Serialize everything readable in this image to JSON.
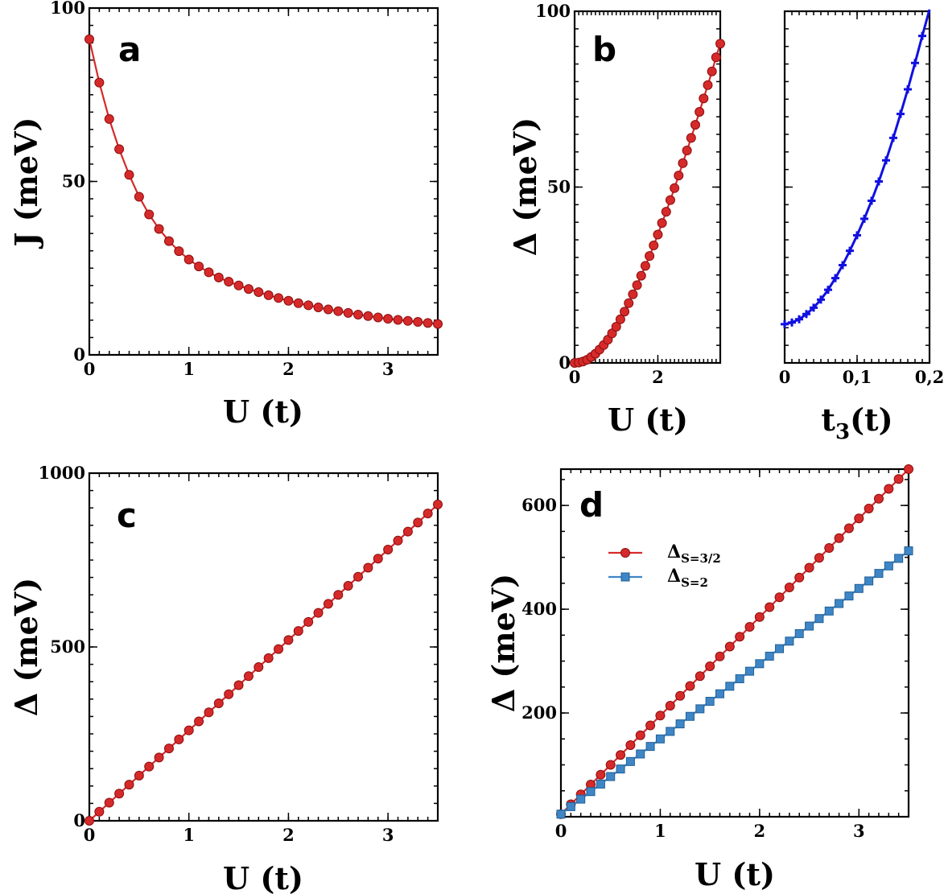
{
  "figure": {
    "colors": {
      "red": "#d62a2a",
      "red_edge": "#8b0d0d",
      "blue": "#1010e0",
      "steel": "#3f86c6",
      "steel_edge": "#1f5f96"
    }
  },
  "chart_data": [
    {
      "id": "a",
      "panel_label": "a",
      "type": "line",
      "xlabel": "U (t)",
      "ylabel": "J (meV)",
      "xlim": [
        0,
        3.5
      ],
      "ylim": [
        0,
        100
      ],
      "xticks": [
        0,
        1,
        2,
        3
      ],
      "xtick_labels": [
        "0",
        "1",
        "2",
        "3"
      ],
      "yticks": [
        0,
        50,
        100
      ],
      "ytick_labels": [
        "0",
        "50",
        "100"
      ],
      "series": [
        {
          "name": "J",
          "color": "#d62a2a",
          "marker": "circle",
          "x": [
            0,
            0.1,
            0.2,
            0.3,
            0.4,
            0.5,
            0.6,
            0.7,
            0.8,
            0.9,
            1.0,
            1.1,
            1.2,
            1.3,
            1.4,
            1.5,
            1.6,
            1.7,
            1.8,
            1.9,
            2.0,
            2.1,
            2.2,
            2.3,
            2.4,
            2.5,
            2.6,
            2.7,
            2.8,
            2.9,
            3.0,
            3.1,
            3.2,
            3.3,
            3.4,
            3.5
          ],
          "y": [
            91.0,
            78.5,
            68.0,
            59.3,
            51.9,
            45.6,
            40.5,
            36.3,
            32.8,
            29.9,
            27.5,
            25.5,
            23.8,
            22.3,
            21.1,
            20.0,
            19.0,
            18.1,
            17.2,
            16.4,
            15.6,
            14.9,
            14.3,
            13.7,
            13.1,
            12.6,
            12.1,
            11.6,
            11.2,
            10.8,
            10.4,
            10.1,
            9.8,
            9.5,
            9.2,
            8.9
          ]
        }
      ]
    },
    {
      "id": "b1",
      "panel_label": "b",
      "type": "line",
      "xlabel": "U (t)",
      "ylabel": "Δ (meV)",
      "xlim": [
        0,
        3.5
      ],
      "ylim": [
        0,
        100
      ],
      "xticks": [
        0,
        2
      ],
      "xtick_labels": [
        "0",
        "2"
      ],
      "yticks": [
        0,
        50,
        100
      ],
      "ytick_labels": [
        "0",
        "50",
        "100"
      ],
      "series": [
        {
          "name": "Δ(U)",
          "color": "#d62a2a",
          "marker": "circle",
          "x": [
            0,
            0.1,
            0.2,
            0.3,
            0.4,
            0.5,
            0.6,
            0.7,
            0.8,
            0.9,
            1.0,
            1.1,
            1.2,
            1.3,
            1.4,
            1.5,
            1.6,
            1.7,
            1.8,
            1.9,
            2.0,
            2.1,
            2.2,
            2.3,
            2.4,
            2.5,
            2.6,
            2.7,
            2.8,
            2.9,
            3.0,
            3.1,
            3.2,
            3.3,
            3.4,
            3.5
          ],
          "y": [
            0.0,
            0.1,
            0.4,
            0.9,
            1.7,
            2.6,
            3.8,
            5.1,
            6.6,
            8.4,
            10.3,
            12.4,
            14.6,
            17.0,
            19.5,
            22.1,
            24.8,
            27.6,
            30.4,
            33.4,
            36.5,
            39.8,
            43.0,
            46.3,
            49.7,
            53.3,
            56.8,
            60.4,
            64.0,
            67.7,
            71.4,
            75.2,
            79.0,
            82.9,
            86.9,
            90.8
          ]
        }
      ]
    },
    {
      "id": "b2",
      "panel_label": "",
      "type": "line",
      "xlabel": "t3(t)",
      "xlabel_main": "t",
      "xlabel_sub": "3",
      "xlabel_rest": "(t)",
      "ylabel": "",
      "xlim": [
        0,
        0.2
      ],
      "ylim": [
        0,
        100
      ],
      "xticks": [
        0,
        0.1,
        0.2
      ],
      "xtick_labels": [
        "0",
        "0,1",
        "0,2"
      ],
      "yticks": [
        0,
        50,
        100
      ],
      "ytick_labels": [
        "",
        "",
        ""
      ],
      "series": [
        {
          "name": "Δ(t3)",
          "color": "#1010e0",
          "marker": "plus",
          "x": [
            0,
            0.01,
            0.02,
            0.03,
            0.04,
            0.05,
            0.06,
            0.07,
            0.08,
            0.09,
            0.1,
            0.11,
            0.12,
            0.13,
            0.14,
            0.15,
            0.16,
            0.17,
            0.18,
            0.19,
            0.2
          ],
          "y": [
            11.0,
            11.5,
            12.4,
            13.9,
            15.7,
            18.0,
            20.8,
            24.1,
            27.8,
            31.9,
            36.3,
            41.0,
            46.1,
            51.6,
            57.6,
            64.0,
            70.8,
            77.8,
            85.3,
            93.0,
            100.5
          ]
        }
      ]
    },
    {
      "id": "c",
      "panel_label": "c",
      "type": "line",
      "xlabel": "U (t)",
      "ylabel": "Δ (meV)",
      "xlim": [
        0,
        3.5
      ],
      "ylim": [
        0,
        1000
      ],
      "xticks": [
        0,
        1,
        2,
        3
      ],
      "xtick_labels": [
        "0",
        "1",
        "2",
        "3"
      ],
      "yticks": [
        0,
        500,
        1000
      ],
      "ytick_labels": [
        "0",
        "500",
        "1000"
      ],
      "series": [
        {
          "name": "Δ",
          "color": "#d62a2a",
          "marker": "circle",
          "x": [
            0,
            0.1,
            0.2,
            0.3,
            0.4,
            0.5,
            0.6,
            0.7,
            0.8,
            0.9,
            1.0,
            1.1,
            1.2,
            1.3,
            1.4,
            1.5,
            1.6,
            1.7,
            1.8,
            1.9,
            2.0,
            2.1,
            2.2,
            2.3,
            2.4,
            2.5,
            2.6,
            2.7,
            2.8,
            2.9,
            3.0,
            3.1,
            3.2,
            3.3,
            3.4,
            3.5
          ],
          "y": [
            0,
            26,
            52,
            78,
            104,
            130,
            156,
            182,
            208,
            234,
            260,
            286,
            312,
            338,
            364,
            390,
            416,
            442,
            468,
            494,
            520,
            546,
            572,
            598,
            624,
            650,
            676,
            702,
            728,
            754,
            780,
            806,
            832,
            858,
            884,
            910
          ]
        }
      ]
    },
    {
      "id": "d",
      "panel_label": "d",
      "type": "line",
      "xlabel": "U (t)",
      "ylabel": "Δ (meV)",
      "xlim": [
        0,
        3.5
      ],
      "ylim": [
        0,
        670
      ],
      "xticks": [
        0,
        1,
        2,
        3
      ],
      "xtick_labels": [
        "0",
        "1",
        "2",
        "3"
      ],
      "yticks": [
        200,
        400,
        600
      ],
      "ytick_labels": [
        "200",
        "400",
        "600"
      ],
      "legend": {
        "placement": "upper-left",
        "entries": [
          {
            "label": "ΔS=3/2",
            "main": "Δ",
            "sub": "S=3/2"
          },
          {
            "label": "ΔS=2",
            "main": "Δ",
            "sub": "S=2"
          }
        ]
      },
      "series": [
        {
          "name": "ΔS=3/2",
          "color": "#d62a2a",
          "marker": "circle",
          "x": [
            0,
            0.1,
            0.2,
            0.3,
            0.4,
            0.5,
            0.6,
            0.7,
            0.8,
            0.9,
            1.0,
            1.1,
            1.2,
            1.3,
            1.4,
            1.5,
            1.6,
            1.7,
            1.8,
            1.9,
            2.0,
            2.1,
            2.2,
            2.3,
            2.4,
            2.5,
            2.6,
            2.7,
            2.8,
            2.9,
            3.0,
            3.1,
            3.2,
            3.3,
            3.4,
            3.5
          ],
          "y": [
            5,
            24,
            43,
            62,
            81,
            100,
            119,
            138,
            157,
            176,
            195,
            214,
            233,
            252,
            271,
            290,
            309,
            328,
            347,
            366,
            385,
            404,
            423,
            442,
            461,
            480,
            499,
            518,
            537,
            556,
            575,
            594,
            613,
            632,
            651,
            670
          ]
        },
        {
          "name": "ΔS=2",
          "color": "#3f86c6",
          "marker": "square",
          "x": [
            0,
            0.1,
            0.2,
            0.3,
            0.4,
            0.5,
            0.6,
            0.7,
            0.8,
            0.9,
            1.0,
            1.1,
            1.2,
            1.3,
            1.4,
            1.5,
            1.6,
            1.7,
            1.8,
            1.9,
            2.0,
            2.1,
            2.2,
            2.3,
            2.4,
            2.5,
            2.6,
            2.7,
            2.8,
            2.9,
            3.0,
            3.1,
            3.2,
            3.3,
            3.4,
            3.5
          ],
          "y": [
            5,
            19.5,
            34,
            48.5,
            63,
            77.5,
            92,
            106.5,
            121,
            135.5,
            150,
            164.5,
            179,
            193.5,
            208,
            222.5,
            237,
            251.5,
            266,
            280.5,
            295,
            309.5,
            324,
            338.5,
            353,
            367.5,
            382,
            396.5,
            411,
            425.5,
            440,
            454.5,
            469,
            483.5,
            498,
            512.5
          ]
        }
      ]
    }
  ]
}
